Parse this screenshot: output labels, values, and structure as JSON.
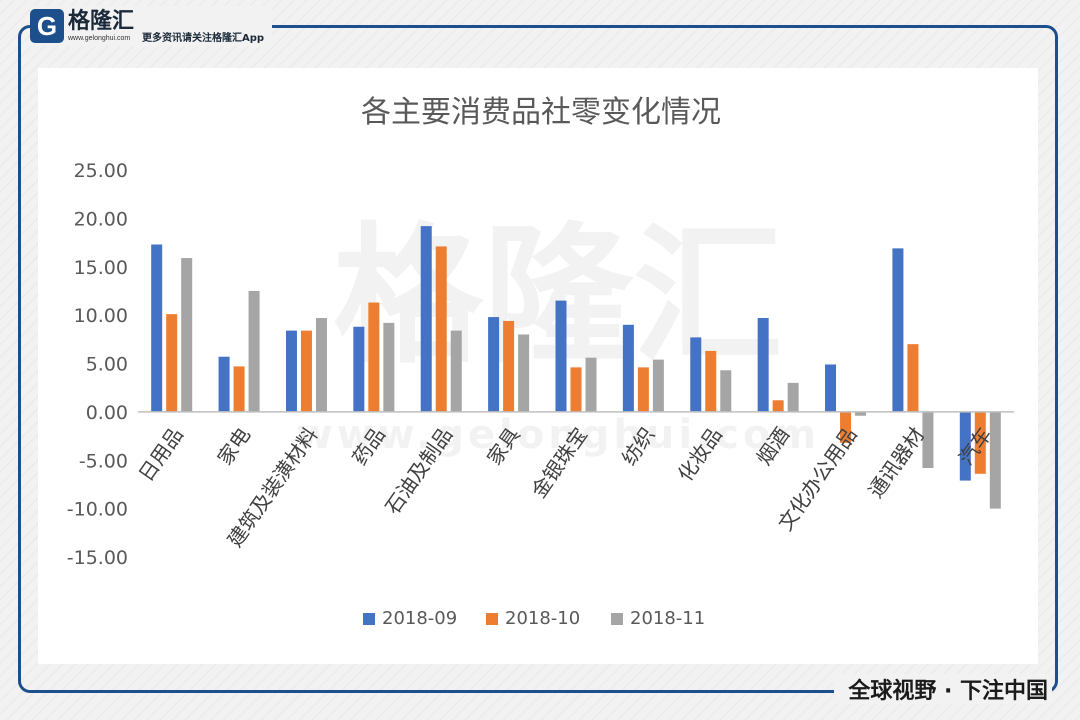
{
  "branding": {
    "logo_text": "格隆汇",
    "logo_url": "www.gelonghui.com",
    "tagline": "更多资讯请关注格隆汇App",
    "slogan": "全球视野 · 下注中国",
    "watermark_text": "格隆汇",
    "watermark_url": "www.gelonghui.com",
    "brand_color": "#1d4f8c"
  },
  "chart_data": {
    "type": "bar",
    "title": "各主要消费品社零变化情况",
    "xlabel": "",
    "ylabel": "",
    "ylim": [
      -15,
      25
    ],
    "yticks": [
      "25.00",
      "20.00",
      "15.00",
      "10.00",
      "5.00",
      "0.00",
      "-5.00",
      "-10.00",
      "-15.00"
    ],
    "categories": [
      "日用品",
      "家电",
      "建筑及装潢材料",
      "药品",
      "石油及制品",
      "家具",
      "金银珠宝",
      "纺织",
      "化妆品",
      "烟酒",
      "文化办公用品",
      "通讯器材",
      "汽车"
    ],
    "series": [
      {
        "name": "2018-09",
        "color": "#4472c4",
        "values": [
          17.3,
          5.7,
          8.4,
          8.8,
          19.2,
          9.8,
          11.5,
          9.0,
          7.7,
          9.7,
          4.9,
          16.9,
          -7.1
        ]
      },
      {
        "name": "2018-10",
        "color": "#ed7d31",
        "values": [
          10.1,
          4.7,
          8.4,
          11.3,
          17.1,
          9.4,
          4.6,
          4.6,
          6.3,
          1.2,
          -3.2,
          7.0,
          -6.4
        ]
      },
      {
        "name": "2018-11",
        "color": "#a5a5a5",
        "values": [
          15.9,
          12.5,
          9.7,
          9.2,
          8.4,
          8.0,
          5.6,
          5.4,
          4.3,
          3.0,
          -0.4,
          -5.8,
          -10.0
        ]
      }
    ],
    "grid": false,
    "legend_position": "bottom"
  }
}
